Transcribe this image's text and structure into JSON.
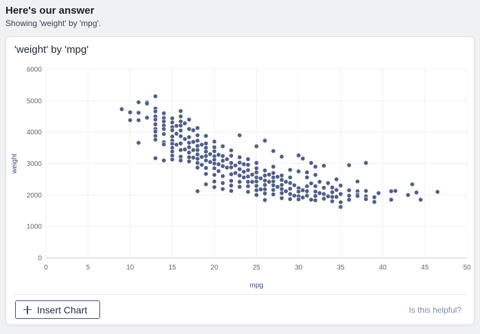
{
  "header": {
    "title": "Here's our answer",
    "subtitle": "Showing 'weight' by 'mpg'."
  },
  "card": {
    "insert_label": "Insert Chart",
    "helpful_label": "Is this helpful?"
  },
  "chart_data": {
    "type": "scatter",
    "title": "'weight' by 'mpg'",
    "xlabel": "mpg",
    "ylabel": "weight",
    "xlim": [
      0,
      50
    ],
    "ylim": [
      0,
      6000
    ],
    "x_ticks": [
      0,
      5,
      10,
      15,
      20,
      25,
      30,
      35,
      40,
      45,
      50
    ],
    "y_ticks": [
      0,
      1000,
      2000,
      3000,
      4000,
      5000,
      6000
    ],
    "grid": true,
    "point_color": "#4f5f88",
    "points": [
      [
        9,
        4730
      ],
      [
        10,
        4630
      ],
      [
        10,
        4380
      ],
      [
        11,
        4950
      ],
      [
        11,
        4615
      ],
      [
        11,
        4380
      ],
      [
        11,
        3660
      ],
      [
        12,
        4950
      ],
      [
        12,
        4910
      ],
      [
        12,
        4460
      ],
      [
        13,
        5140
      ],
      [
        13,
        4750
      ],
      [
        13,
        4660
      ],
      [
        13,
        4500
      ],
      [
        13,
        4400
      ],
      [
        13,
        4250
      ],
      [
        13,
        4100
      ],
      [
        13,
        4020
      ],
      [
        13,
        3880
      ],
      [
        13,
        3760
      ],
      [
        13,
        3170
      ],
      [
        14,
        4600
      ],
      [
        14,
        4450
      ],
      [
        14,
        4340
      ],
      [
        14,
        4210
      ],
      [
        14,
        4100
      ],
      [
        14,
        3940
      ],
      [
        14,
        3680
      ],
      [
        14,
        3610
      ],
      [
        14,
        3100
      ],
      [
        15,
        4440
      ],
      [
        15,
        4310
      ],
      [
        15,
        4160
      ],
      [
        15,
        4060
      ],
      [
        15,
        3860
      ],
      [
        15,
        3730
      ],
      [
        15,
        3630
      ],
      [
        15,
        3500
      ],
      [
        15,
        3380
      ],
      [
        15,
        3250
      ],
      [
        15,
        3130
      ],
      [
        15.5,
        4200
      ],
      [
        15.5,
        3950
      ],
      [
        15.5,
        3600
      ],
      [
        16,
        4670
      ],
      [
        16,
        4500
      ],
      [
        16,
        4340
      ],
      [
        16,
        4210
      ],
      [
        16,
        4050
      ],
      [
        16,
        3870
      ],
      [
        16,
        3640
      ],
      [
        16,
        3430
      ],
      [
        16,
        3220
      ],
      [
        16,
        3100
      ],
      [
        16.5,
        4280
      ],
      [
        16.5,
        3780
      ],
      [
        16.5,
        3450
      ],
      [
        17,
        4400
      ],
      [
        17,
        4100
      ],
      [
        17,
        3840
      ],
      [
        17,
        3660
      ],
      [
        17,
        3520
      ],
      [
        17,
        3350
      ],
      [
        17,
        3200
      ],
      [
        17,
        3070
      ],
      [
        17.5,
        4060
      ],
      [
        17.5,
        3690
      ],
      [
        17.5,
        3430
      ],
      [
        17.5,
        3190
      ],
      [
        18,
        4130
      ],
      [
        18,
        3900
      ],
      [
        18,
        3730
      ],
      [
        18,
        3560
      ],
      [
        18,
        3430
      ],
      [
        18,
        3290
      ],
      [
        18,
        3150
      ],
      [
        18,
        3020
      ],
      [
        18,
        2870
      ],
      [
        18,
        2120
      ],
      [
        18.5,
        3600
      ],
      [
        18.5,
        3210
      ],
      [
        18.5,
        2960
      ],
      [
        19,
        3880
      ],
      [
        19,
        3640
      ],
      [
        19,
        3500
      ],
      [
        19,
        3380
      ],
      [
        19,
        3240
      ],
      [
        19,
        3100
      ],
      [
        19,
        2860
      ],
      [
        19,
        2670
      ],
      [
        19,
        2340
      ],
      [
        19.5,
        3300
      ],
      [
        19.5,
        3050
      ],
      [
        20,
        3700
      ],
      [
        20,
        3520
      ],
      [
        20,
        3390
      ],
      [
        20,
        3230
      ],
      [
        20,
        3120
      ],
      [
        20,
        3000
      ],
      [
        20,
        2850
      ],
      [
        20,
        2640
      ],
      [
        20,
        2430
      ],
      [
        20,
        2250
      ],
      [
        20.5,
        3280
      ],
      [
        20.5,
        2980
      ],
      [
        20.5,
        2760
      ],
      [
        21,
        3550
      ],
      [
        21,
        3240
      ],
      [
        21,
        3090
      ],
      [
        21,
        2920
      ],
      [
        21,
        2600
      ],
      [
        21,
        2380
      ],
      [
        21,
        2190
      ],
      [
        21.5,
        3140
      ],
      [
        21.5,
        2870
      ],
      [
        22,
        3420
      ],
      [
        22,
        3250
      ],
      [
        22,
        3020
      ],
      [
        22,
        2880
      ],
      [
        22,
        2660
      ],
      [
        22,
        2450
      ],
      [
        22,
        2300
      ],
      [
        22,
        2130
      ],
      [
        22.5,
        2940
      ],
      [
        22.5,
        2700
      ],
      [
        23,
        3900
      ],
      [
        23,
        3200
      ],
      [
        23,
        3030
      ],
      [
        23,
        2820
      ],
      [
        23,
        2620
      ],
      [
        23,
        2420
      ],
      [
        23,
        2260
      ],
      [
        23.5,
        2980
      ],
      [
        23.5,
        2740
      ],
      [
        23.5,
        2560
      ],
      [
        24,
        3140
      ],
      [
        24,
        2960
      ],
      [
        24,
        2790
      ],
      [
        24,
        2590
      ],
      [
        24,
        2420
      ],
      [
        24,
        2280
      ],
      [
        24,
        2100
      ],
      [
        24.5,
        2650
      ],
      [
        24.5,
        2420
      ],
      [
        25,
        3550
      ],
      [
        25,
        3020
      ],
      [
        25,
        2850
      ],
      [
        25,
        2720
      ],
      [
        25,
        2560
      ],
      [
        25,
        2430
      ],
      [
        25,
        2290
      ],
      [
        25,
        2150
      ],
      [
        25,
        2000
      ],
      [
        25.5,
        2530
      ],
      [
        25.5,
        2180
      ],
      [
        26,
        3730
      ],
      [
        26,
        2780
      ],
      [
        26,
        2620
      ],
      [
        26,
        2460
      ],
      [
        26,
        2320
      ],
      [
        26,
        2180
      ],
      [
        26,
        2050
      ],
      [
        26,
        1840
      ],
      [
        26.5,
        2650
      ],
      [
        26.5,
        2420
      ],
      [
        27,
        3400
      ],
      [
        27,
        2900
      ],
      [
        27,
        2700
      ],
      [
        27,
        2560
      ],
      [
        27,
        2430
      ],
      [
        27,
        2310
      ],
      [
        27,
        2160
      ],
      [
        27,
        2020
      ],
      [
        27.5,
        2580
      ],
      [
        27.5,
        2260
      ],
      [
        28,
        3220
      ],
      [
        28,
        2620
      ],
      [
        28,
        2480
      ],
      [
        28,
        2320
      ],
      [
        28,
        2190
      ],
      [
        28,
        2060
      ],
      [
        28,
        1900
      ],
      [
        28.5,
        2420
      ],
      [
        28.5,
        2120
      ],
      [
        29,
        2800
      ],
      [
        29,
        2560
      ],
      [
        29,
        2380
      ],
      [
        29,
        2200
      ],
      [
        29,
        2030
      ],
      [
        29,
        1870
      ],
      [
        29.5,
        2310
      ],
      [
        29.5,
        1980
      ],
      [
        30,
        3260
      ],
      [
        30,
        2750
      ],
      [
        30,
        2220
      ],
      [
        30,
        2110
      ],
      [
        30,
        1960
      ],
      [
        30,
        1860
      ],
      [
        30.5,
        3160
      ],
      [
        30.5,
        2150
      ],
      [
        30.5,
        1920
      ],
      [
        31,
        2720
      ],
      [
        31,
        2560
      ],
      [
        31,
        2280
      ],
      [
        31,
        2120
      ],
      [
        31,
        1980
      ],
      [
        31.5,
        3020
      ],
      [
        31.5,
        2370
      ],
      [
        31.5,
        1850
      ],
      [
        32,
        2900
      ],
      [
        32,
        2640
      ],
      [
        32,
        2280
      ],
      [
        32,
        2110
      ],
      [
        32,
        1970
      ],
      [
        32,
        1830
      ],
      [
        32.5,
        2420
      ],
      [
        32.5,
        2060
      ],
      [
        33,
        2930
      ],
      [
        33,
        2230
      ],
      [
        33,
        2030
      ],
      [
        33,
        1880
      ],
      [
        33.5,
        2380
      ],
      [
        33.5,
        1960
      ],
      [
        34,
        2240
      ],
      [
        34,
        2090
      ],
      [
        34,
        1940
      ],
      [
        34,
        1800
      ],
      [
        34.5,
        2500
      ],
      [
        34.5,
        2160
      ],
      [
        34.5,
        1940
      ],
      [
        35,
        2300
      ],
      [
        35,
        2030
      ],
      [
        35,
        1770
      ],
      [
        35,
        1620
      ],
      [
        36,
        2950
      ],
      [
        36,
        2150
      ],
      [
        36,
        1980
      ],
      [
        36,
        1850
      ],
      [
        37,
        2430
      ],
      [
        37,
        2120
      ],
      [
        37,
        2020
      ],
      [
        37,
        1970
      ],
      [
        38,
        3020
      ],
      [
        38,
        2130
      ],
      [
        38,
        1960
      ],
      [
        38,
        1870
      ],
      [
        39,
        1930
      ],
      [
        39,
        1780
      ],
      [
        39.5,
        2060
      ],
      [
        41,
        2120
      ],
      [
        41,
        1850
      ],
      [
        41.5,
        2130
      ],
      [
        43,
        2000
      ],
      [
        43.5,
        2340
      ],
      [
        44,
        2080
      ],
      [
        44.5,
        1850
      ],
      [
        46.5,
        2100
      ]
    ]
  }
}
